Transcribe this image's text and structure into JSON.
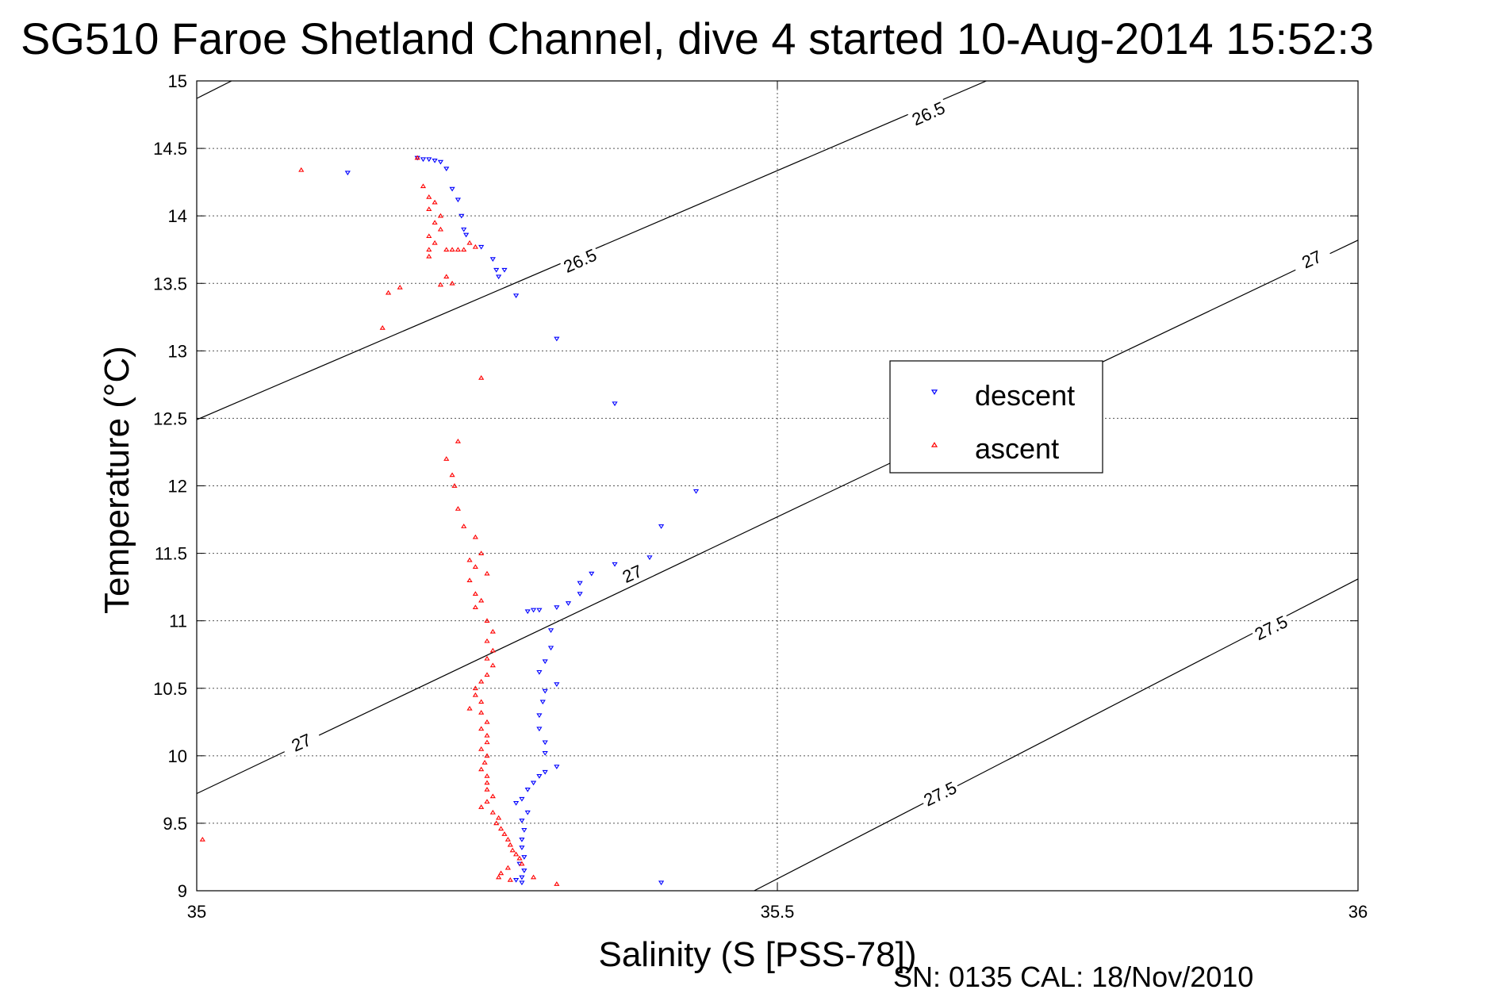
{
  "chart_data": {
    "type": "scatter",
    "title": "SG510 Faroe Shetland Channel, dive 4 started 10-Aug-2014 15:52:3",
    "xlabel": "Salinity (S [PSS-78])",
    "ylabel": "Temperature (°C)",
    "xlim": [
      35,
      36
    ],
    "ylim": [
      9,
      15
    ],
    "x_ticks": [
      "35",
      "35.5",
      "36"
    ],
    "y_ticks": [
      "9",
      "9.5",
      "10",
      "10.5",
      "11",
      "11.5",
      "12",
      "12.5",
      "13",
      "13.5",
      "14",
      "14.5",
      "15"
    ],
    "grid": true,
    "legend_position": "center-right",
    "footer": "SN: 0135  CAL: 18/Nov/2010",
    "colors": {
      "descent": "#0000ff",
      "ascent": "#ff0000",
      "contour": "#000000"
    },
    "contours": [
      {
        "label": "26.5",
        "points": [
          [
            35.0,
            12.49
          ],
          [
            35.68,
            15.0
          ]
        ]
      },
      {
        "label": "26.5",
        "points": [
          [
            35.0,
            14.87
          ],
          [
            35.03,
            15.0
          ]
        ]
      },
      {
        "label": "27",
        "points": [
          [
            35.0,
            9.72
          ],
          [
            36.0,
            13.82
          ]
        ]
      },
      {
        "label": "27.5",
        "points": [
          [
            35.48,
            9.0
          ],
          [
            36.0,
            11.31
          ]
        ]
      }
    ],
    "contour_labels": [
      {
        "text": "26.5",
        "x": 35.33,
        "y": 13.67,
        "angle": -24
      },
      {
        "text": "26.5",
        "x": 35.63,
        "y": 14.76,
        "angle": -24
      },
      {
        "text": "27",
        "x": 35.09,
        "y": 10.1,
        "angle": -24
      },
      {
        "text": "27",
        "x": 35.375,
        "y": 11.35,
        "angle": -24
      },
      {
        "text": "27",
        "x": 35.96,
        "y": 13.68,
        "angle": -24
      },
      {
        "text": "27.5",
        "x": 35.64,
        "y": 9.72,
        "angle": -26
      },
      {
        "text": "27.5",
        "x": 35.925,
        "y": 10.95,
        "angle": -26
      }
    ],
    "series": [
      {
        "name": "descent",
        "marker": "triangle-down",
        "color": "#0000ff",
        "points": [
          [
            35.13,
            14.32
          ],
          [
            35.19,
            14.43
          ],
          [
            35.195,
            14.42
          ],
          [
            35.2,
            14.42
          ],
          [
            35.205,
            14.41
          ],
          [
            35.21,
            14.4
          ],
          [
            35.215,
            14.35
          ],
          [
            35.22,
            14.2
          ],
          [
            35.225,
            14.12
          ],
          [
            35.228,
            14.0
          ],
          [
            35.23,
            13.9
          ],
          [
            35.232,
            13.86
          ],
          [
            35.245,
            13.77
          ],
          [
            35.255,
            13.68
          ],
          [
            35.258,
            13.6
          ],
          [
            35.26,
            13.55
          ],
          [
            35.265,
            13.6
          ],
          [
            35.275,
            13.41
          ],
          [
            35.31,
            13.09
          ],
          [
            35.36,
            12.61
          ],
          [
            35.43,
            11.96
          ],
          [
            35.4,
            11.7
          ],
          [
            35.39,
            11.47
          ],
          [
            35.36,
            11.42
          ],
          [
            35.34,
            11.35
          ],
          [
            35.33,
            11.28
          ],
          [
            35.33,
            11.2
          ],
          [
            35.32,
            11.13
          ],
          [
            35.31,
            11.1
          ],
          [
            35.295,
            11.08
          ],
          [
            35.29,
            11.08
          ],
          [
            35.285,
            11.07
          ],
          [
            35.305,
            10.93
          ],
          [
            35.305,
            10.8
          ],
          [
            35.3,
            10.7
          ],
          [
            35.295,
            10.62
          ],
          [
            35.31,
            10.53
          ],
          [
            35.3,
            10.48
          ],
          [
            35.298,
            10.4
          ],
          [
            35.295,
            10.3
          ],
          [
            35.295,
            10.2
          ],
          [
            35.3,
            10.1
          ],
          [
            35.3,
            10.02
          ],
          [
            35.31,
            9.92
          ],
          [
            35.3,
            9.88
          ],
          [
            35.295,
            9.85
          ],
          [
            35.29,
            9.8
          ],
          [
            35.285,
            9.75
          ],
          [
            35.28,
            9.68
          ],
          [
            35.275,
            9.65
          ],
          [
            35.285,
            9.58
          ],
          [
            35.28,
            9.52
          ],
          [
            35.282,
            9.45
          ],
          [
            35.28,
            9.38
          ],
          [
            35.28,
            9.32
          ],
          [
            35.282,
            9.25
          ],
          [
            35.278,
            9.2
          ],
          [
            35.282,
            9.15
          ],
          [
            35.28,
            9.1
          ],
          [
            35.275,
            9.08
          ],
          [
            35.28,
            9.06
          ],
          [
            35.4,
            9.06
          ]
        ]
      },
      {
        "name": "ascent",
        "marker": "triangle-up",
        "color": "#ff0000",
        "points": [
          [
            35.09,
            14.34
          ],
          [
            35.19,
            14.43
          ],
          [
            35.195,
            14.22
          ],
          [
            35.2,
            14.14
          ],
          [
            35.205,
            14.1
          ],
          [
            35.2,
            14.05
          ],
          [
            35.21,
            14.0
          ],
          [
            35.205,
            13.95
          ],
          [
            35.21,
            13.9
          ],
          [
            35.2,
            13.85
          ],
          [
            35.205,
            13.8
          ],
          [
            35.2,
            13.75
          ],
          [
            35.2,
            13.7
          ],
          [
            35.215,
            13.75
          ],
          [
            35.22,
            13.75
          ],
          [
            35.225,
            13.75
          ],
          [
            35.23,
            13.75
          ],
          [
            35.235,
            13.8
          ],
          [
            35.24,
            13.77
          ],
          [
            35.215,
            13.55
          ],
          [
            35.21,
            13.49
          ],
          [
            35.175,
            13.47
          ],
          [
            35.165,
            13.43
          ],
          [
            35.22,
            13.5
          ],
          [
            35.16,
            13.17
          ],
          [
            35.245,
            12.8
          ],
          [
            35.225,
            12.33
          ],
          [
            35.215,
            12.2
          ],
          [
            35.22,
            12.08
          ],
          [
            35.222,
            12.0
          ],
          [
            35.225,
            11.83
          ],
          [
            35.23,
            11.7
          ],
          [
            35.24,
            11.62
          ],
          [
            35.245,
            11.5
          ],
          [
            35.235,
            11.45
          ],
          [
            35.24,
            11.4
          ],
          [
            35.25,
            11.35
          ],
          [
            35.235,
            11.3
          ],
          [
            35.24,
            11.2
          ],
          [
            35.245,
            11.15
          ],
          [
            35.24,
            11.1
          ],
          [
            35.25,
            11.0
          ],
          [
            35.255,
            10.92
          ],
          [
            35.25,
            10.85
          ],
          [
            35.255,
            10.78
          ],
          [
            35.25,
            10.72
          ],
          [
            35.255,
            10.67
          ],
          [
            35.25,
            10.6
          ],
          [
            35.245,
            10.55
          ],
          [
            35.24,
            10.5
          ],
          [
            35.24,
            10.45
          ],
          [
            35.245,
            10.4
          ],
          [
            35.235,
            10.35
          ],
          [
            35.245,
            10.32
          ],
          [
            35.25,
            10.25
          ],
          [
            35.245,
            10.2
          ],
          [
            35.25,
            10.15
          ],
          [
            35.25,
            10.1
          ],
          [
            35.245,
            10.05
          ],
          [
            35.25,
            10.0
          ],
          [
            35.248,
            9.95
          ],
          [
            35.245,
            9.9
          ],
          [
            35.25,
            9.85
          ],
          [
            35.25,
            9.8
          ],
          [
            35.25,
            9.75
          ],
          [
            35.255,
            9.7
          ],
          [
            35.25,
            9.66
          ],
          [
            35.245,
            9.62
          ],
          [
            35.255,
            9.58
          ],
          [
            35.26,
            9.54
          ],
          [
            35.258,
            9.5
          ],
          [
            35.262,
            9.46
          ],
          [
            35.265,
            9.42
          ],
          [
            35.268,
            9.38
          ],
          [
            35.27,
            9.34
          ],
          [
            35.272,
            9.3
          ],
          [
            35.275,
            9.27
          ],
          [
            35.278,
            9.24
          ],
          [
            35.28,
            9.2
          ],
          [
            35.268,
            9.17
          ],
          [
            35.262,
            9.13
          ],
          [
            35.26,
            9.1
          ],
          [
            35.27,
            9.08
          ],
          [
            35.29,
            9.1
          ],
          [
            35.31,
            9.05
          ],
          [
            35.005,
            9.38
          ]
        ]
      }
    ]
  }
}
